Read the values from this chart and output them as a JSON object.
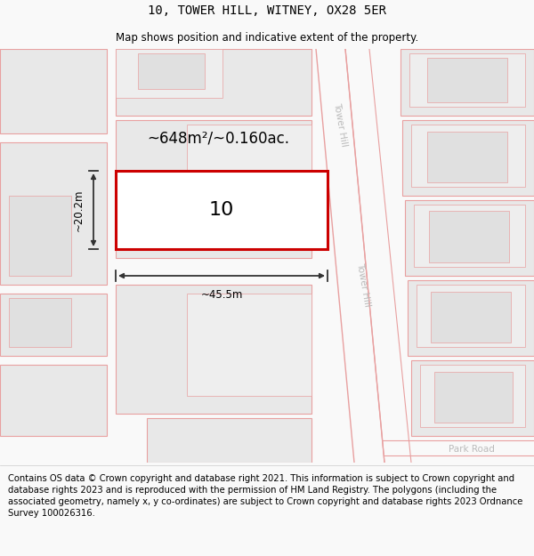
{
  "title": "10, TOWER HILL, WITNEY, OX28 5ER",
  "subtitle": "Map shows position and indicative extent of the property.",
  "footer": "Contains OS data © Crown copyright and database right 2021. This information is subject to Crown copyright and database rights 2023 and is reproduced with the permission of HM Land Registry. The polygons (including the associated geometry, namely x, y co-ordinates) are subject to Crown copyright and database rights 2023 Ordnance Survey 100026316.",
  "background_color": "#f9f9f9",
  "map_background": "#ffffff",
  "area_label": "~648m²/~0.160ac.",
  "property_number": "10",
  "width_label": "~45.5m",
  "height_label": "~20.2m",
  "road_name_top": "Tower Hill",
  "road_name_mid": "Tower Hill",
  "road_name_bot": "Park Road",
  "building_fill": "#e8e8e8",
  "road_outline_color": "#e8a0a0",
  "highlight_color": "#cc0000",
  "dim_color": "#333333",
  "title_fontsize": 10,
  "subtitle_fontsize": 8.5,
  "footer_fontsize": 7.2,
  "label_fontsize": 10,
  "dim_fontsize": 8.5,
  "road_label_color": "#bbbbbb",
  "road_label_fontsize": 7.5
}
